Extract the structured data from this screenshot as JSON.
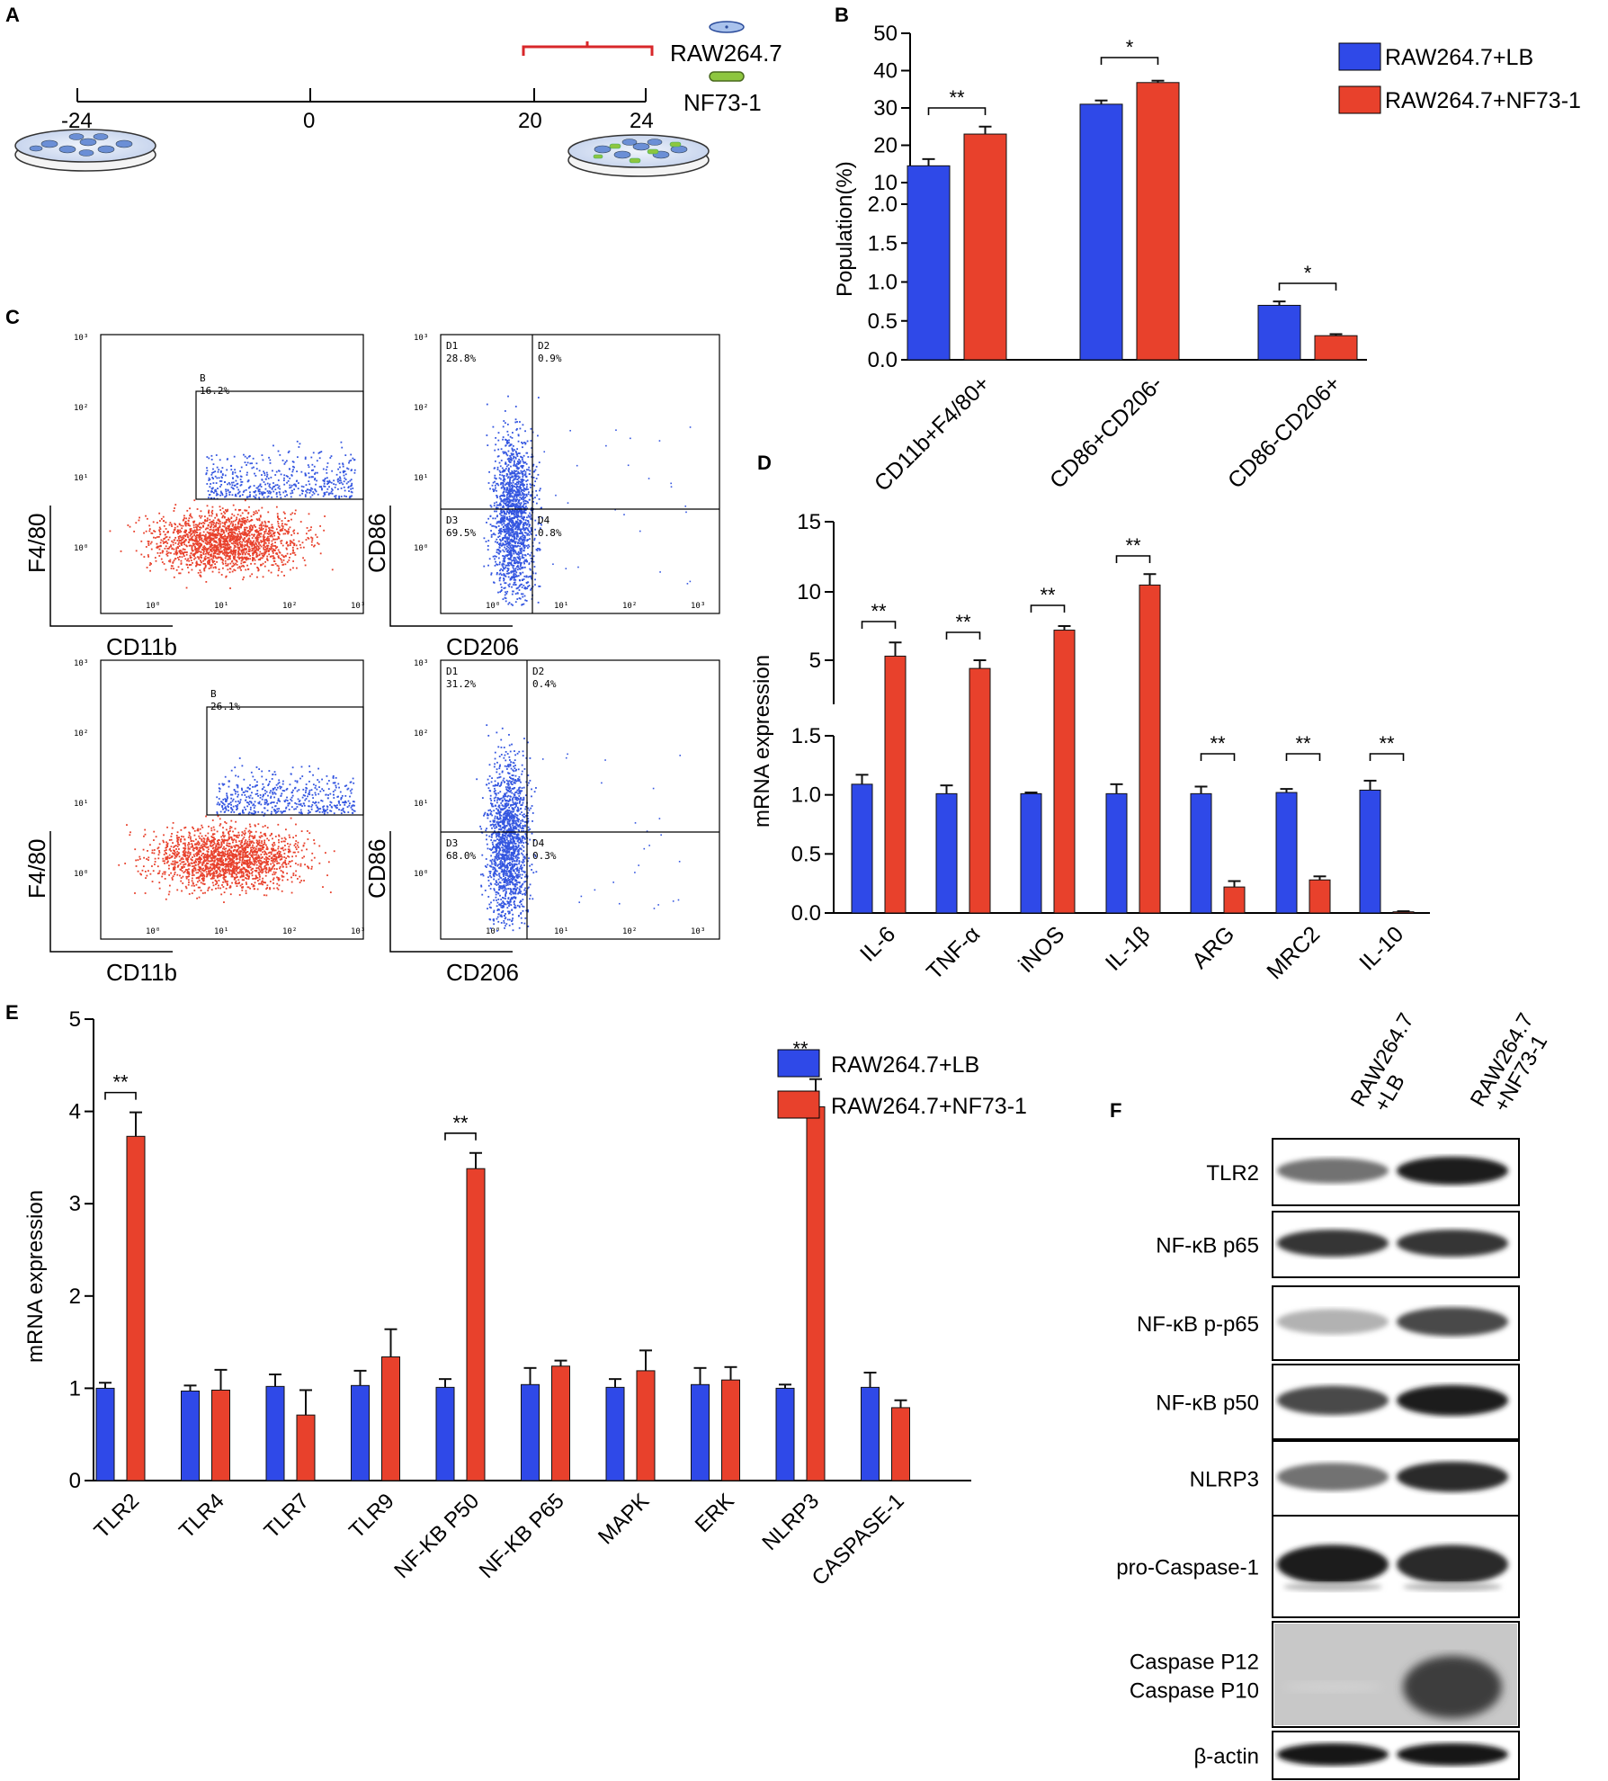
{
  "colors": {
    "blue": "#2f49e8",
    "red": "#e8412c",
    "bracket_red": "#d8272a",
    "dish_fill": "#dce6f5",
    "dish_cells": "#6b8fd6",
    "green": "#8dc63f"
  },
  "panel_a": {
    "letter": "A",
    "timeline_ticks": [
      "-24",
      "0",
      "20",
      "24"
    ],
    "legend": {
      "raw": "RAW264.7",
      "nf": "NF73-1"
    }
  },
  "chart_data": [
    {
      "id": "B",
      "letter": "B",
      "type": "bar",
      "ylabel": "Population(%)",
      "broken_axis": true,
      "lower_ticks": [
        "0.0",
        "0.5",
        "1.0",
        "1.5",
        "2.0"
      ],
      "upper_ticks": [
        "10",
        "20",
        "30",
        "40",
        "50"
      ],
      "categories": [
        "CD11b+F4/80+",
        "CD86+CD206-",
        "CD86-CD206+"
      ],
      "series": [
        {
          "name": "RAW264.7+LB",
          "values": [
            14.5,
            31,
            0.7
          ],
          "errors": [
            1.8,
            1.0,
            0.05
          ]
        },
        {
          "name": "RAW264.7+NF73-1",
          "values": [
            23,
            36.8,
            0.31
          ],
          "errors": [
            2.0,
            0.5,
            0.02
          ]
        }
      ],
      "significance": [
        "**",
        "*",
        "*"
      ]
    },
    {
      "id": "D",
      "letter": "D",
      "type": "bar",
      "ylabel": "mRNA expression",
      "broken_axis": true,
      "lower_ticks": [
        "0.0",
        "0.5",
        "1.0",
        "1.5"
      ],
      "upper_ticks": [
        "5",
        "10",
        "15"
      ],
      "categories": [
        "IL-6",
        "TNF-α",
        "iNOS",
        "IL-1β",
        "ARG",
        "MRC2",
        "IL-10"
      ],
      "series": [
        {
          "name": "RAW264.7+LB",
          "values": [
            1.09,
            1.01,
            1.01,
            1.01,
            1.01,
            1.02,
            1.04
          ],
          "errors": [
            0.08,
            0.07,
            0.01,
            0.08,
            0.06,
            0.03,
            0.08
          ]
        },
        {
          "name": "RAW264.7+NF73-1",
          "values": [
            5.3,
            4.4,
            7.2,
            10.5,
            0.22,
            0.28,
            0.01
          ],
          "errors": [
            1.0,
            0.6,
            0.3,
            0.8,
            0.05,
            0.03,
            0.005
          ]
        }
      ],
      "significance": [
        "**",
        "**",
        "**",
        "**",
        "**",
        "**",
        "**"
      ]
    },
    {
      "id": "E",
      "letter": "E",
      "type": "bar",
      "ylabel": "mRNA expression",
      "ylim": [
        0,
        5
      ],
      "ticks": [
        "0",
        "1",
        "2",
        "3",
        "4",
        "5"
      ],
      "categories": [
        "TLR2",
        "TLR4",
        "TLR7",
        "TLR9",
        "NF-KB P50",
        "NF-KB P65",
        "MAPK",
        "ERK",
        "NLRP3",
        "CASPASE-1"
      ],
      "series": [
        {
          "name": "RAW264.7+LB",
          "values": [
            1.0,
            0.97,
            1.02,
            1.03,
            1.01,
            1.04,
            1.01,
            1.04,
            1.0,
            1.01
          ],
          "errors": [
            0.06,
            0.06,
            0.13,
            0.16,
            0.09,
            0.18,
            0.09,
            0.18,
            0.04,
            0.16
          ]
        },
        {
          "name": "RAW264.7+NF73-1",
          "values": [
            3.73,
            0.98,
            0.71,
            1.34,
            3.38,
            1.24,
            1.19,
            1.09,
            4.05,
            0.79
          ],
          "errors": [
            0.26,
            0.22,
            0.27,
            0.3,
            0.17,
            0.06,
            0.22,
            0.14,
            0.3,
            0.08
          ]
        }
      ],
      "significance": [
        "**",
        "",
        "",
        "",
        "**",
        "",
        "",
        "",
        "**",
        ""
      ]
    }
  ],
  "panel_c": {
    "letter": "C",
    "plots": [
      {
        "x_label": "CD11b",
        "y_label": "F4/80",
        "gates": [
          {
            "name": "B",
            "value": "16.2%"
          }
        ]
      },
      {
        "x_label": "CD206",
        "y_label": "CD86",
        "gates": [
          {
            "name": "D1",
            "value": "28.8%"
          },
          {
            "name": "D2",
            "value": "0.9%"
          },
          {
            "name": "D3",
            "value": "69.5%"
          },
          {
            "name": "D4",
            "value": "0.8%"
          }
        ]
      },
      {
        "x_label": "CD11b",
        "y_label": "F4/80",
        "gates": [
          {
            "name": "B",
            "value": "26.1%"
          }
        ]
      },
      {
        "x_label": "CD206",
        "y_label": "CD86",
        "gates": [
          {
            "name": "D1",
            "value": "31.2%"
          },
          {
            "name": "D2",
            "value": "0.4%"
          },
          {
            "name": "D3",
            "value": "68.0%"
          },
          {
            "name": "D4",
            "value": "0.3%"
          }
        ]
      }
    ],
    "tick_labels": [
      "10⁰",
      "10¹",
      "10²",
      "10³"
    ]
  },
  "panel_f": {
    "letter": "F",
    "columns": [
      {
        "line1": "RAW264.7",
        "line2": "+LB"
      },
      {
        "line1": "RAW264.7",
        "line2": "+NF73-1"
      }
    ],
    "rows": [
      {
        "label": "TLR2",
        "bands": [
          0.55,
          0.95
        ]
      },
      {
        "label": "NF-κB p65",
        "bands": [
          0.85,
          0.85
        ]
      },
      {
        "label": "NF-κB p-p65",
        "bands": [
          0.25,
          0.75
        ]
      },
      {
        "label": "NF-κB p50",
        "bands": [
          0.75,
          0.95
        ]
      },
      {
        "label": "NLRP3",
        "bands": [
          0.55,
          0.9
        ]
      },
      {
        "label": "pro-Caspase-1",
        "bands": [
          0.95,
          0.9
        ]
      },
      {
        "label": "Caspase P12",
        "label2": "Caspase P10",
        "bands": [
          0.1,
          0.8
        ]
      },
      {
        "label": "β-actin",
        "bands": [
          1.0,
          1.0
        ]
      }
    ]
  }
}
